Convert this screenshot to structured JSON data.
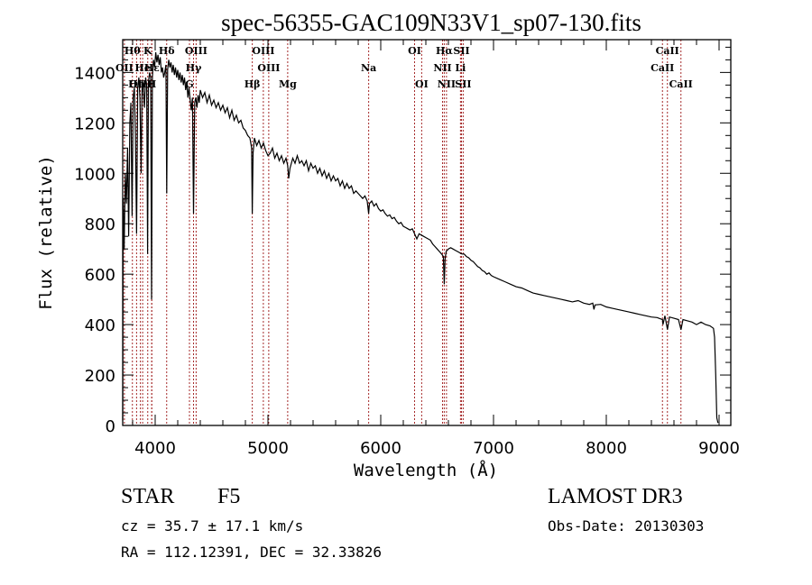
{
  "chart_data": {
    "type": "line",
    "title": "spec-56355-GAC109N33V1_sp07-130.fits",
    "xlabel": "Wavelength (Å)",
    "ylabel": "Flux (relative)",
    "xlim": [
      3712,
      9104
    ],
    "ylim": [
      0,
      1530
    ],
    "xticks": [
      4000,
      5000,
      6000,
      7000,
      8000,
      9000
    ],
    "xtick_labels": [
      "4000",
      "5000",
      "6000",
      "7000",
      "8000",
      "9000"
    ],
    "yticks": [
      0,
      200,
      400,
      600,
      800,
      1000,
      1200,
      1400
    ],
    "ytick_labels": [
      "0",
      "200",
      "400",
      "600",
      "800",
      "1000",
      "1200",
      "1400"
    ],
    "grid": false,
    "series": [
      {
        "name": "spectrum",
        "color": "#000000",
        "points": [
          [
            3712,
            20
          ],
          [
            3716,
            900
          ],
          [
            3725,
            700
          ],
          [
            3735,
            1000
          ],
          [
            3745,
            880
          ],
          [
            3755,
            1100
          ],
          [
            3765,
            750
          ],
          [
            3775,
            1200
          ],
          [
            3785,
            1280
          ],
          [
            3795,
            830
          ],
          [
            3805,
            1300
          ],
          [
            3815,
            1340
          ],
          [
            3825,
            1150
          ],
          [
            3835,
            760
          ],
          [
            3845,
            1340
          ],
          [
            3855,
            1380
          ],
          [
            3865,
            1300
          ],
          [
            3875,
            1000
          ],
          [
            3885,
            1370
          ],
          [
            3895,
            1330
          ],
          [
            3905,
            1260
          ],
          [
            3915,
            1380
          ],
          [
            3925,
            1350
          ],
          [
            3933,
            680
          ],
          [
            3940,
            1360
          ],
          [
            3950,
            1400
          ],
          [
            3960,
            1380
          ],
          [
            3968,
            500
          ],
          [
            3975,
            1380
          ],
          [
            3985,
            1450
          ],
          [
            3995,
            1420
          ],
          [
            4005,
            1480
          ],
          [
            4015,
            1440
          ],
          [
            4025,
            1470
          ],
          [
            4035,
            1430
          ],
          [
            4045,
            1460
          ],
          [
            4055,
            1400
          ],
          [
            4065,
            1420
          ],
          [
            4075,
            1380
          ],
          [
            4085,
            1400
          ],
          [
            4095,
            1430
          ],
          [
            4102,
            920
          ],
          [
            4110,
            1410
          ],
          [
            4120,
            1450
          ],
          [
            4130,
            1420
          ],
          [
            4140,
            1440
          ],
          [
            4150,
            1400
          ],
          [
            4160,
            1430
          ],
          [
            4170,
            1390
          ],
          [
            4180,
            1420
          ],
          [
            4190,
            1380
          ],
          [
            4200,
            1410
          ],
          [
            4210,
            1370
          ],
          [
            4220,
            1400
          ],
          [
            4230,
            1360
          ],
          [
            4240,
            1390
          ],
          [
            4250,
            1350
          ],
          [
            4260,
            1380
          ],
          [
            4270,
            1330
          ],
          [
            4280,
            1360
          ],
          [
            4290,
            1300
          ],
          [
            4300,
            1340
          ],
          [
            4310,
            1290
          ],
          [
            4320,
            1250
          ],
          [
            4330,
            1300
          ],
          [
            4340,
            840
          ],
          [
            4350,
            1280
          ],
          [
            4360,
            1300
          ],
          [
            4370,
            1260
          ],
          [
            4380,
            1310
          ],
          [
            4390,
            1280
          ],
          [
            4400,
            1330
          ],
          [
            4420,
            1300
          ],
          [
            4440,
            1320
          ],
          [
            4460,
            1280
          ],
          [
            4480,
            1310
          ],
          [
            4500,
            1270
          ],
          [
            4520,
            1290
          ],
          [
            4540,
            1260
          ],
          [
            4560,
            1280
          ],
          [
            4580,
            1250
          ],
          [
            4600,
            1270
          ],
          [
            4620,
            1240
          ],
          [
            4640,
            1260
          ],
          [
            4660,
            1220
          ],
          [
            4680,
            1250
          ],
          [
            4700,
            1210
          ],
          [
            4720,
            1230
          ],
          [
            4740,
            1200
          ],
          [
            4760,
            1210
          ],
          [
            4780,
            1180
          ],
          [
            4800,
            1170
          ],
          [
            4820,
            1150
          ],
          [
            4840,
            1140
          ],
          [
            4855,
            1100
          ],
          [
            4861,
            840
          ],
          [
            4868,
            1080
          ],
          [
            4880,
            1140
          ],
          [
            4900,
            1110
          ],
          [
            4920,
            1130
          ],
          [
            4940,
            1100
          ],
          [
            4960,
            1120
          ],
          [
            4980,
            1090
          ],
          [
            5000,
            1070
          ],
          [
            5020,
            1080
          ],
          [
            5040,
            1100
          ],
          [
            5060,
            1060
          ],
          [
            5080,
            1080
          ],
          [
            5100,
            1050
          ],
          [
            5120,
            1070
          ],
          [
            5140,
            1040
          ],
          [
            5160,
            1060
          ],
          [
            5175,
            1030
          ],
          [
            5184,
            980
          ],
          [
            5195,
            1020
          ],
          [
            5220,
            1060
          ],
          [
            5240,
            1040
          ],
          [
            5260,
            1070
          ],
          [
            5280,
            1040
          ],
          [
            5300,
            1050
          ],
          [
            5320,
            1030
          ],
          [
            5340,
            1050
          ],
          [
            5360,
            1010
          ],
          [
            5380,
            1040
          ],
          [
            5400,
            1020
          ],
          [
            5420,
            1030
          ],
          [
            5440,
            1000
          ],
          [
            5460,
            1020
          ],
          [
            5480,
            990
          ],
          [
            5500,
            1010
          ],
          [
            5520,
            980
          ],
          [
            5540,
            1000
          ],
          [
            5560,
            970
          ],
          [
            5580,
            990
          ],
          [
            5600,
            970
          ],
          [
            5620,
            980
          ],
          [
            5640,
            950
          ],
          [
            5660,
            970
          ],
          [
            5680,
            940
          ],
          [
            5700,
            960
          ],
          [
            5720,
            940
          ],
          [
            5740,
            950
          ],
          [
            5760,
            920
          ],
          [
            5780,
            930
          ],
          [
            5800,
            920
          ],
          [
            5820,
            910
          ],
          [
            5840,
            900
          ],
          [
            5860,
            910
          ],
          [
            5880,
            890
          ],
          [
            5893,
            840
          ],
          [
            5900,
            880
          ],
          [
            5920,
            890
          ],
          [
            5940,
            870
          ],
          [
            5960,
            880
          ],
          [
            5980,
            860
          ],
          [
            6000,
            850
          ],
          [
            6020,
            855
          ],
          [
            6040,
            840
          ],
          [
            6060,
            830
          ],
          [
            6080,
            835
          ],
          [
            6100,
            820
          ],
          [
            6120,
            825
          ],
          [
            6140,
            810
          ],
          [
            6160,
            800
          ],
          [
            6180,
            805
          ],
          [
            6200,
            790
          ],
          [
            6220,
            785
          ],
          [
            6240,
            780
          ],
          [
            6260,
            775
          ],
          [
            6280,
            780
          ],
          [
            6300,
            760
          ],
          [
            6320,
            740
          ],
          [
            6340,
            760
          ],
          [
            6360,
            755
          ],
          [
            6380,
            750
          ],
          [
            6400,
            745
          ],
          [
            6420,
            740
          ],
          [
            6440,
            735
          ],
          [
            6460,
            720
          ],
          [
            6480,
            710
          ],
          [
            6500,
            700
          ],
          [
            6520,
            690
          ],
          [
            6540,
            680
          ],
          [
            6555,
            670
          ],
          [
            6563,
            560
          ],
          [
            6570,
            660
          ],
          [
            6580,
            690
          ],
          [
            6600,
            700
          ],
          [
            6620,
            705
          ],
          [
            6640,
            700
          ],
          [
            6660,
            695
          ],
          [
            6680,
            690
          ],
          [
            6700,
            685
          ],
          [
            6720,
            680
          ],
          [
            6740,
            680
          ],
          [
            6760,
            670
          ],
          [
            6780,
            665
          ],
          [
            6800,
            655
          ],
          [
            6820,
            650
          ],
          [
            6840,
            640
          ],
          [
            6860,
            630
          ],
          [
            6880,
            625
          ],
          [
            6900,
            615
          ],
          [
            6920,
            610
          ],
          [
            6940,
            600
          ],
          [
            6960,
            605
          ],
          [
            6980,
            595
          ],
          [
            7000,
            590
          ],
          [
            7050,
            580
          ],
          [
            7100,
            570
          ],
          [
            7150,
            560
          ],
          [
            7200,
            550
          ],
          [
            7250,
            545
          ],
          [
            7300,
            535
          ],
          [
            7350,
            525
          ],
          [
            7400,
            520
          ],
          [
            7450,
            515
          ],
          [
            7500,
            510
          ],
          [
            7550,
            505
          ],
          [
            7600,
            500
          ],
          [
            7650,
            495
          ],
          [
            7700,
            490
          ],
          [
            7750,
            495
          ],
          [
            7800,
            485
          ],
          [
            7850,
            480
          ],
          [
            7880,
            485
          ],
          [
            7890,
            460
          ],
          [
            7900,
            478
          ],
          [
            7950,
            480
          ],
          [
            8000,
            470
          ],
          [
            8050,
            465
          ],
          [
            8100,
            460
          ],
          [
            8150,
            455
          ],
          [
            8200,
            450
          ],
          [
            8250,
            445
          ],
          [
            8300,
            440
          ],
          [
            8350,
            435
          ],
          [
            8400,
            430
          ],
          [
            8450,
            428
          ],
          [
            8498,
            420
          ],
          [
            8502,
            400
          ],
          [
            8520,
            435
          ],
          [
            8542,
            380
          ],
          [
            8560,
            430
          ],
          [
            8600,
            425
          ],
          [
            8640,
            420
          ],
          [
            8662,
            380
          ],
          [
            8680,
            420
          ],
          [
            8720,
            415
          ],
          [
            8760,
            410
          ],
          [
            8800,
            400
          ],
          [
            8840,
            410
          ],
          [
            8880,
            400
          ],
          [
            8920,
            395
          ],
          [
            8950,
            385
          ],
          [
            8960,
            350
          ],
          [
            8970,
            200
          ],
          [
            8980,
            30
          ],
          [
            8990,
            10
          ]
        ]
      }
    ],
    "spectral_lines": [
      {
        "label": "Hθ",
        "wavelength": 3798,
        "row": 0
      },
      {
        "label": "OII",
        "wavelength": 3727,
        "row": 1
      },
      {
        "label": "OIII",
        "wavelength": 3869,
        "row": 2
      },
      {
        "label": "He",
        "wavelength": 3889,
        "row": 1
      },
      {
        "label": "Hη",
        "wavelength": 3835,
        "row": 2
      },
      {
        "label": "K",
        "wavelength": 3934,
        "row": 0
      },
      {
        "label": "H",
        "wavelength": 3969,
        "row": 2
      },
      {
        "label": "Hε",
        "wavelength": 3970,
        "row": 1
      },
      {
        "label": "Hδ",
        "wavelength": 4102,
        "row": 0
      },
      {
        "label": "OIII",
        "wavelength": 4363,
        "row": 0
      },
      {
        "label": "Hγ",
        "wavelength": 4340,
        "row": 1
      },
      {
        "label": "G",
        "wavelength": 4304,
        "row": 2
      },
      {
        "label": "OIII",
        "wavelength": 4959,
        "row": 0
      },
      {
        "label": "OIII",
        "wavelength": 5007,
        "row": 1
      },
      {
        "label": "Hβ",
        "wavelength": 4861,
        "row": 2
      },
      {
        "label": "Mg",
        "wavelength": 5175,
        "row": 2
      },
      {
        "label": "Na",
        "wavelength": 5893,
        "row": 1
      },
      {
        "label": "OI",
        "wavelength": 6300,
        "row": 0
      },
      {
        "label": "OI",
        "wavelength": 6363,
        "row": 2
      },
      {
        "label": "Hα",
        "wavelength": 6563,
        "row": 0
      },
      {
        "label": "NII",
        "wavelength": 6548,
        "row": 1
      },
      {
        "label": "NII",
        "wavelength": 6583,
        "row": 2
      },
      {
        "label": "SII",
        "wavelength": 6716,
        "row": 0
      },
      {
        "label": "Li",
        "wavelength": 6707,
        "row": 1
      },
      {
        "label": "SII",
        "wavelength": 6731,
        "row": 2
      },
      {
        "label": "CaII",
        "wavelength": 8542,
        "row": 0
      },
      {
        "label": "CaII",
        "wavelength": 8498,
        "row": 1
      },
      {
        "label": "CaII",
        "wavelength": 8662,
        "row": 2
      }
    ],
    "line_marker_color": "#a52a2a"
  },
  "info": {
    "object_class": "STAR",
    "subclass": "F5",
    "survey": "LAMOST DR3",
    "redshift": "cz = 35.7 ± 17.1 km/s",
    "obs_date": "Obs-Date: 20130303",
    "coords": "RA = 112.12391, DEC =  32.33826"
  }
}
